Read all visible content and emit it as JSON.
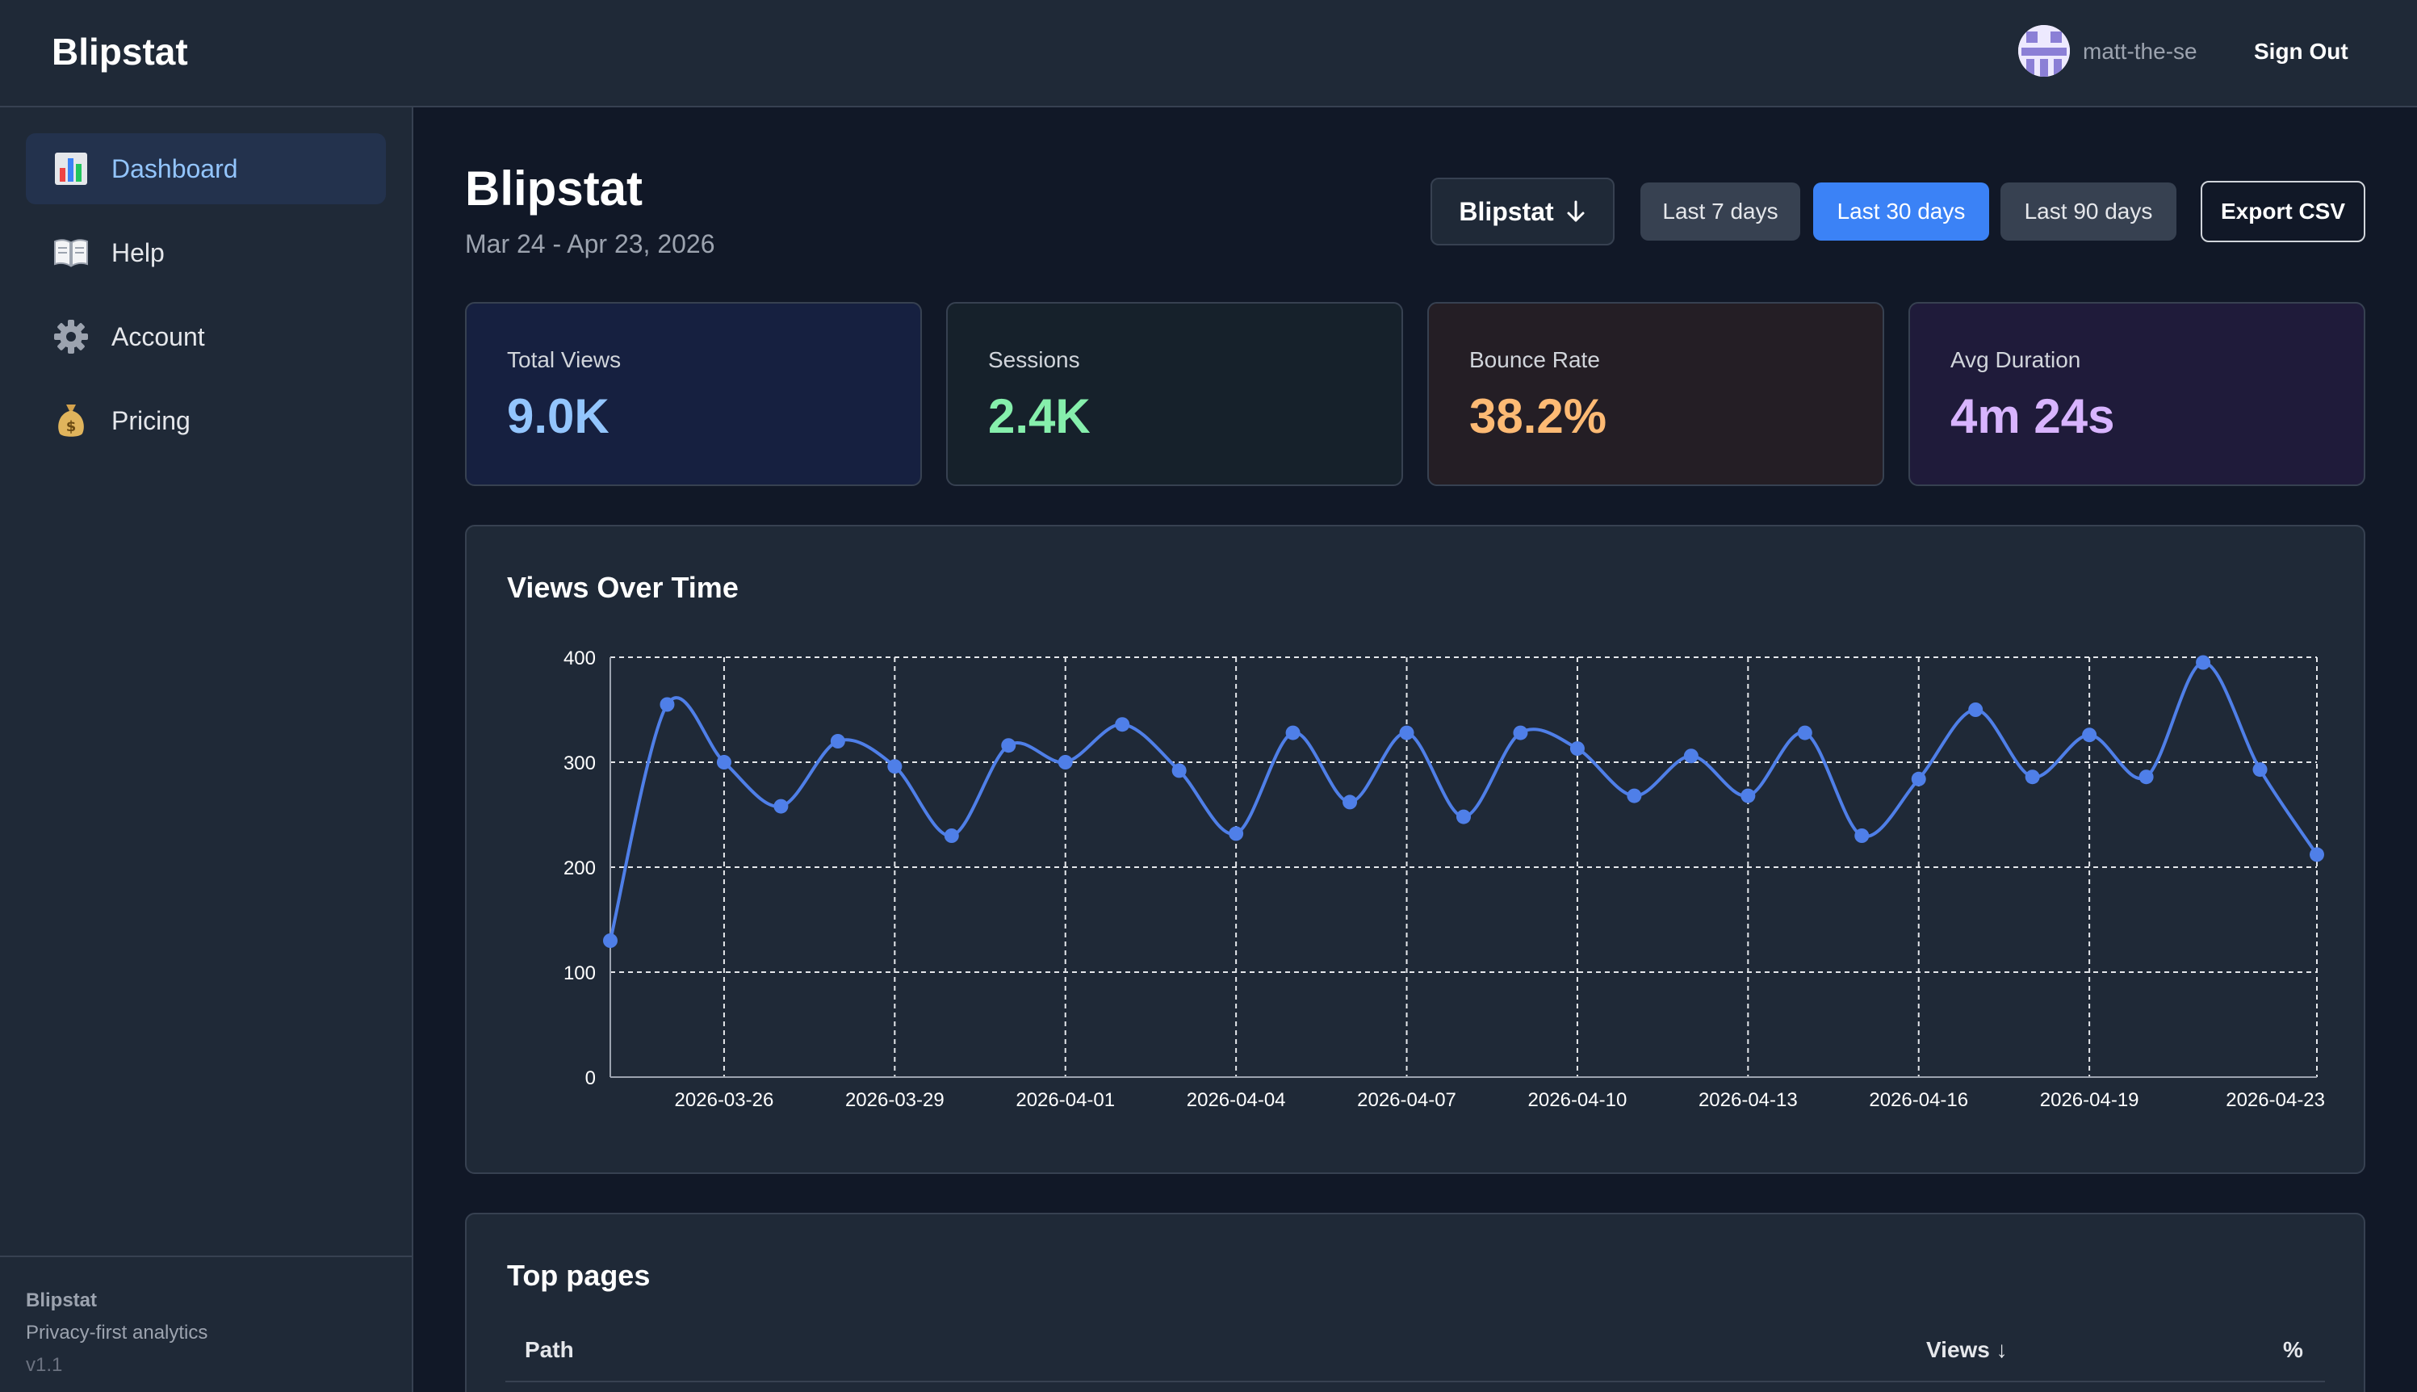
{
  "header": {
    "brand": "Blipstat",
    "username": "matt-the-se",
    "sign_out": "Sign Out"
  },
  "sidebar": {
    "items": [
      {
        "label": "Dashboard",
        "icon": "bar-chart-icon",
        "active": true
      },
      {
        "label": "Help",
        "icon": "book-icon",
        "active": false
      },
      {
        "label": "Account",
        "icon": "gear-icon",
        "active": false
      },
      {
        "label": "Pricing",
        "icon": "money-bag-icon",
        "active": false
      }
    ],
    "footer": {
      "name": "Blipstat",
      "tagline": "Privacy-first analytics",
      "version": "v1.1"
    }
  },
  "main": {
    "title": "Blipstat",
    "date_range": "Mar 24 - Apr 23, 2026",
    "site_selector": "Blipstat",
    "ranges": [
      "Last 7 days",
      "Last 30 days",
      "Last 90 days"
    ],
    "active_range": "Last 30 days",
    "export": "Export CSV",
    "stats": [
      {
        "label": "Total Views",
        "value": "9.0K",
        "color": "#93c5fd"
      },
      {
        "label": "Sessions",
        "value": "2.4K",
        "color": "#86efac"
      },
      {
        "label": "Bounce Rate",
        "value": "38.2%",
        "color": "#fdba74"
      },
      {
        "label": "Avg Duration",
        "value": "4m 24s",
        "color": "#d8b4fe"
      }
    ],
    "top_pages": {
      "title": "Top pages",
      "columns": [
        "Path",
        "Views ↓",
        "%"
      ]
    }
  },
  "colors": {
    "accent": "#3b82f6",
    "line": "#4f7fe8"
  },
  "chart_data": {
    "type": "line",
    "title": "Views Over Time",
    "x": [
      "2026-03-24",
      "2026-03-25",
      "2026-03-26",
      "2026-03-27",
      "2026-03-28",
      "2026-03-29",
      "2026-03-30",
      "2026-03-31",
      "2026-04-01",
      "2026-04-02",
      "2026-04-03",
      "2026-04-04",
      "2026-04-05",
      "2026-04-06",
      "2026-04-07",
      "2026-04-08",
      "2026-04-09",
      "2026-04-10",
      "2026-04-11",
      "2026-04-12",
      "2026-04-13",
      "2026-04-14",
      "2026-04-15",
      "2026-04-16",
      "2026-04-17",
      "2026-04-18",
      "2026-04-19",
      "2026-04-20",
      "2026-04-21",
      "2026-04-22",
      "2026-04-23"
    ],
    "series": [
      {
        "values": [
          130,
          355,
          300,
          258,
          320,
          296,
          230,
          316,
          300,
          336,
          292,
          232,
          328,
          262,
          328,
          248,
          328,
          313,
          268,
          306,
          268,
          328,
          230,
          284,
          350,
          286,
          326,
          286,
          395,
          293,
          212
        ]
      }
    ],
    "x_ticks": [
      "2026-03-26",
      "2026-03-29",
      "2026-04-01",
      "2026-04-04",
      "2026-04-07",
      "2026-04-10",
      "2026-04-13",
      "2026-04-16",
      "2026-04-19",
      "2026-04-23"
    ],
    "y_ticks": [
      0,
      100,
      200,
      300,
      400
    ],
    "ylim": [
      0,
      400
    ],
    "grid": true
  }
}
